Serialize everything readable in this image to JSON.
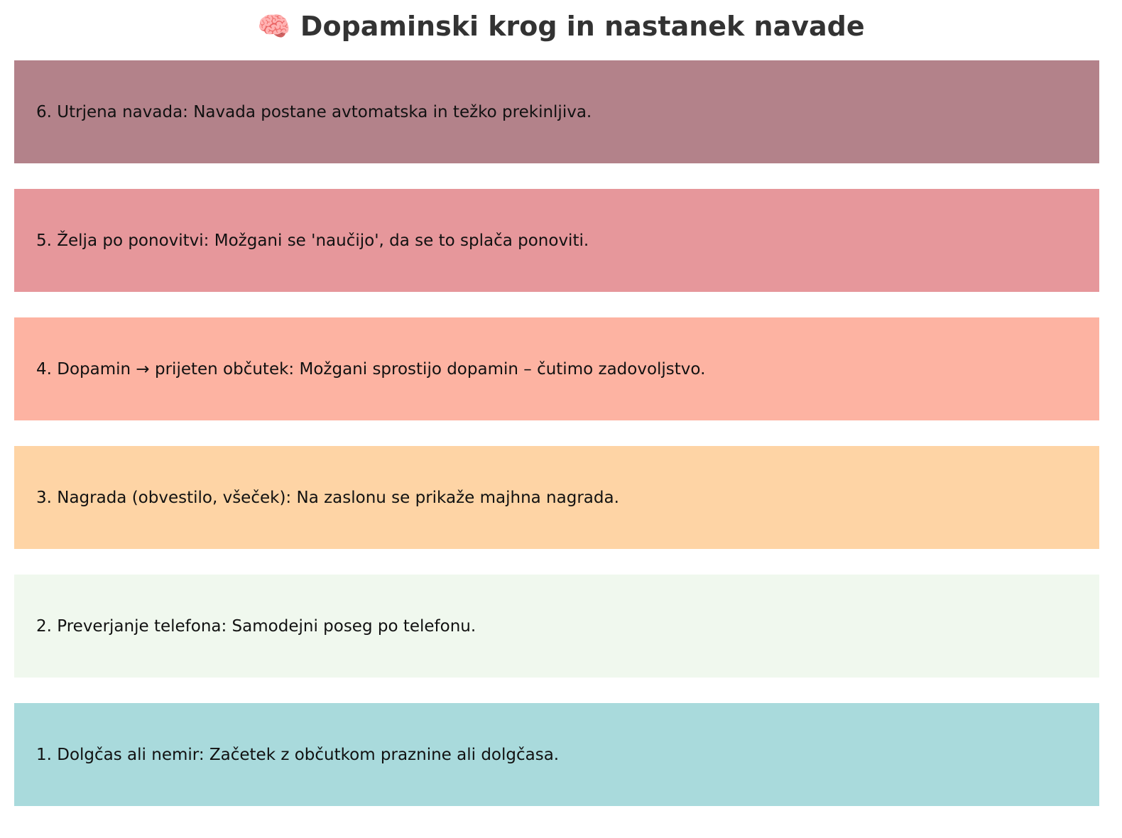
{
  "title": "🧠 Dopaminski krog in nastanek navade",
  "steps": [
    {
      "text": "6. Utrjena navada: Navada postane avtomatska in težko prekinljiva.",
      "color": "#b3828a"
    },
    {
      "text": "5. Želja po ponovitvi: Možgani se 'naučijo', da se to splača ponoviti.",
      "color": "#e6979b"
    },
    {
      "text": "4. Dopamin → prijeten občutek: Možgani sprostijo dopamin – čutimo zadovoljstvo.",
      "color": "#fdb3a2"
    },
    {
      "text": "3. Nagrada (obvestilo, všeček): Na zaslonu se prikaže majhna nagrada.",
      "color": "#fed4a5"
    },
    {
      "text": "2. Preverjanje telefona: Samodejni poseg po telefonu.",
      "color": "#f0f8ee"
    },
    {
      "text": "1. Dolgčas ali nemir: Začetek z občutkom praznine ali dolgčasa.",
      "color": "#a9dadc"
    }
  ]
}
